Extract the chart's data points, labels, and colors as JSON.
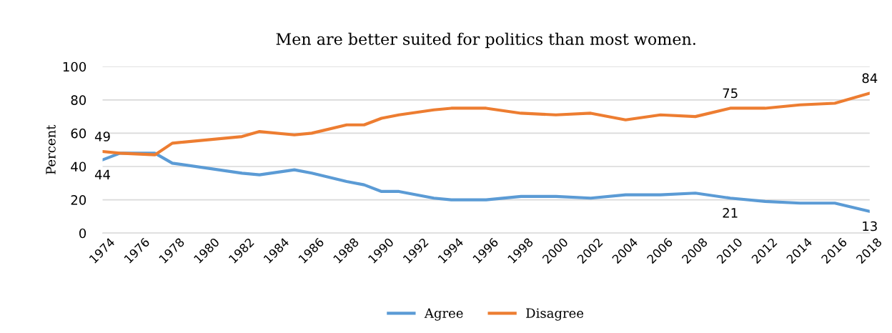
{
  "chart_data": {
    "type": "line",
    "title": "Men are better suited for politics than most women.",
    "ylabel": "Percent",
    "xlim": [
      1974,
      2018
    ],
    "xticks": [
      1974,
      1976,
      1978,
      1980,
      1982,
      1984,
      1986,
      1988,
      1990,
      1992,
      1994,
      1996,
      1998,
      2000,
      2002,
      2004,
      2006,
      2008,
      2010,
      2012,
      2014,
      2016,
      2018
    ],
    "ylim": [
      0,
      100
    ],
    "yticks": [
      0,
      20,
      40,
      60,
      80,
      100
    ],
    "grid": "y",
    "legend": "bottom",
    "marker": "none",
    "line_style": "solid",
    "x": [
      1974,
      1975,
      1977,
      1978,
      1982,
      1983,
      1985,
      1986,
      1988,
      1989,
      1990,
      1991,
      1993,
      1994,
      1996,
      1998,
      2000,
      2002,
      2004,
      2006,
      2008,
      2010,
      2012,
      2014,
      2016,
      2018
    ],
    "series": [
      {
        "name": "Agree",
        "color": "#5b9bd5",
        "values": [
          44,
          48,
          48,
          42,
          36,
          35,
          38,
          36,
          31,
          29,
          25,
          25,
          21,
          20,
          20,
          22,
          22,
          21,
          23,
          23,
          24,
          21,
          19,
          18,
          18,
          13
        ],
        "value_labels": [
          "44",
          null,
          null,
          null,
          null,
          null,
          null,
          null,
          null,
          null,
          null,
          null,
          null,
          null,
          null,
          null,
          null,
          null,
          null,
          null,
          null,
          "21",
          null,
          null,
          null,
          "13"
        ]
      },
      {
        "name": "Disagree",
        "color": "#ed7d31",
        "values": [
          49,
          48,
          47,
          54,
          58,
          61,
          59,
          60,
          65,
          65,
          69,
          71,
          74,
          75,
          75,
          72,
          71,
          72,
          68,
          71,
          70,
          75,
          75,
          77,
          78,
          84
        ],
        "value_labels": [
          "49",
          null,
          null,
          null,
          null,
          null,
          null,
          null,
          null,
          null,
          null,
          null,
          null,
          null,
          null,
          null,
          null,
          null,
          null,
          null,
          null,
          "75",
          null,
          null,
          null,
          "84"
        ]
      }
    ]
  }
}
